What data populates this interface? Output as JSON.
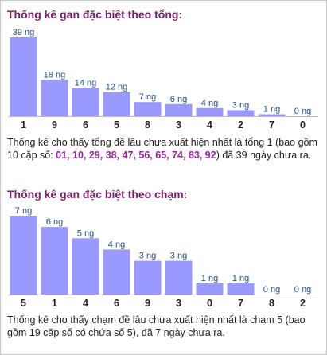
{
  "colors": {
    "bar": "#9999ff",
    "bar_label": "#1f4e8c",
    "title": "#7a1f6a",
    "highlight": "#9c1fa5",
    "text": "#222222"
  },
  "section1": {
    "title": "Thống kê gan đặc biệt theo tổng:",
    "desc_prefix": "Thống kê cho thấy tổng đề lâu chưa xuất hiện nhất là tổng 1 (bao gồm 10 cặp số: ",
    "desc_numbers": "01, 10, 29, 38, 47, 56, 65, 74, 83, 92",
    "desc_suffix": ") đã 39 ngày chưa ra."
  },
  "section2": {
    "title": "Thống kê gan đặc biệt theo chạm:",
    "desc": "Thống kê cho thấy chạm đề lâu chưa xuất hiện nhất là chạm 5 (bao gồm 19 cặp số có chứa số 5), đã 7 ngày chưa ra."
  },
  "chart_data": [
    {
      "type": "bar",
      "title": "Thống kê gan đặc biệt theo tổng:",
      "categories": [
        "1",
        "9",
        "6",
        "5",
        "8",
        "3",
        "4",
        "2",
        "7",
        "0"
      ],
      "values": [
        39,
        18,
        14,
        12,
        7,
        6,
        4,
        3,
        1,
        0
      ],
      "value_labels": [
        "39 ng",
        "18 ng",
        "14 ng",
        "12 ng",
        "7 ng",
        "6 ng",
        "4 ng",
        "3 ng",
        "1 ng",
        "0 ng"
      ],
      "ylim": [
        0,
        39
      ]
    },
    {
      "type": "bar",
      "title": "Thống kê gan đặc biệt theo chạm:",
      "categories": [
        "5",
        "1",
        "4",
        "6",
        "9",
        "3",
        "0",
        "7",
        "8",
        "2"
      ],
      "values": [
        7,
        6,
        5,
        4,
        3,
        3,
        1,
        1,
        0,
        0
      ],
      "value_labels": [
        "7 ng",
        "6 ng",
        "5 ng",
        "4 ng",
        "3 ng",
        "3 ng",
        "1 ng",
        "1 ng",
        "0 ng",
        "0 ng"
      ],
      "ylim": [
        0,
        7
      ]
    }
  ]
}
